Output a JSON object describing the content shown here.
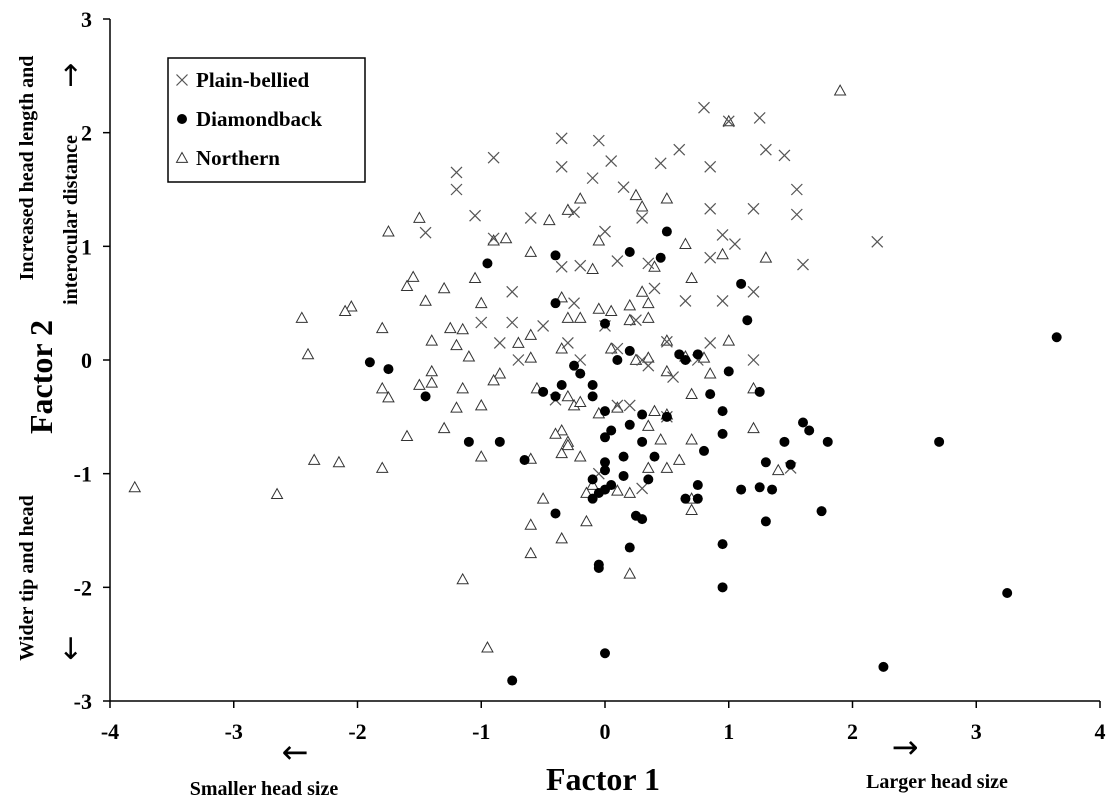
{
  "chart_data": {
    "type": "scatter",
    "title": "",
    "xlabel": "Factor 1",
    "ylabel": "Factor 2",
    "xlim": [
      -4,
      4
    ],
    "ylim": [
      -3,
      3
    ],
    "xticks": [
      "-4",
      "-3",
      "-2",
      "-1",
      "0",
      "1",
      "2",
      "3",
      "4"
    ],
    "yticks": [
      "-3",
      "-2",
      "-1",
      "0",
      "1",
      "2",
      "3"
    ],
    "grid": false,
    "legend_position": "top-left",
    "annotations": {
      "x_left": "Smaller head size",
      "x_right": "Larger head size",
      "y_top_line1": "Increased head length and",
      "y_top_line2": "interocular distance",
      "y_bottom": "Wider tip and head",
      "arrow_left": "←",
      "arrow_right": "→",
      "arrow_up": "→",
      "arrow_down": "←"
    },
    "series": [
      {
        "name": "Plain-bellied",
        "marker": "x",
        "points": [
          [
            0.8,
            2.22
          ],
          [
            1.0,
            2.1
          ],
          [
            1.25,
            2.13
          ],
          [
            1.3,
            1.85
          ],
          [
            1.45,
            1.8
          ],
          [
            -0.35,
            1.95
          ],
          [
            -0.05,
            1.93
          ],
          [
            -0.9,
            1.78
          ],
          [
            0.6,
            1.85
          ],
          [
            0.05,
            1.75
          ],
          [
            0.45,
            1.73
          ],
          [
            -0.35,
            1.7
          ],
          [
            0.85,
            1.7
          ],
          [
            -1.2,
            1.65
          ],
          [
            -0.1,
            1.6
          ],
          [
            1.55,
            1.5
          ],
          [
            -1.2,
            1.5
          ],
          [
            0.15,
            1.52
          ],
          [
            1.2,
            1.33
          ],
          [
            0.85,
            1.33
          ],
          [
            1.55,
            1.28
          ],
          [
            -1.05,
            1.27
          ],
          [
            -0.25,
            1.3
          ],
          [
            0.3,
            1.25
          ],
          [
            -0.6,
            1.25
          ],
          [
            -1.45,
            1.12
          ],
          [
            0.0,
            1.13
          ],
          [
            0.95,
            1.1
          ],
          [
            -0.9,
            1.07
          ],
          [
            0.1,
            0.87
          ],
          [
            0.35,
            0.85
          ],
          [
            1.05,
            1.02
          ],
          [
            2.2,
            1.04
          ],
          [
            -0.35,
            0.82
          ],
          [
            -0.2,
            0.83
          ],
          [
            1.6,
            0.84
          ],
          [
            0.4,
            0.63
          ],
          [
            -0.75,
            0.6
          ],
          [
            1.2,
            0.6
          ],
          [
            0.85,
            0.9
          ],
          [
            0.65,
            0.52
          ],
          [
            0.95,
            0.52
          ],
          [
            -0.25,
            0.5
          ],
          [
            0.25,
            0.35
          ],
          [
            -1.0,
            0.33
          ],
          [
            -0.5,
            0.3
          ],
          [
            0.0,
            0.3
          ],
          [
            0.5,
            0.16
          ],
          [
            -0.85,
            0.15
          ],
          [
            -0.3,
            0.15
          ],
          [
            0.85,
            0.15
          ],
          [
            0.1,
            0.1
          ],
          [
            0.3,
            0.0
          ],
          [
            -0.7,
            0.0
          ],
          [
            0.75,
            0.0
          ],
          [
            0.3,
            -1.13
          ],
          [
            1.5,
            -0.95
          ],
          [
            -0.05,
            -1.0
          ],
          [
            0.2,
            -0.4
          ],
          [
            0.5,
            -0.5
          ],
          [
            -0.2,
            0.0
          ],
          [
            0.35,
            -0.05
          ],
          [
            -0.75,
            0.33
          ],
          [
            0.1,
            -0.4
          ],
          [
            -0.4,
            -0.35
          ],
          [
            0.55,
            -0.15
          ],
          [
            1.2,
            0.0
          ]
        ]
      },
      {
        "name": "Diamondback",
        "marker": "filled-circle",
        "points": [
          [
            3.65,
            0.2
          ],
          [
            0.5,
            1.13
          ],
          [
            0.2,
            0.95
          ],
          [
            0.45,
            0.9
          ],
          [
            -0.4,
            0.92
          ],
          [
            -0.95,
            0.85
          ],
          [
            1.1,
            0.67
          ],
          [
            -0.4,
            0.5
          ],
          [
            1.15,
            0.35
          ],
          [
            0.0,
            0.32
          ],
          [
            -1.9,
            -0.02
          ],
          [
            -1.75,
            -0.08
          ],
          [
            0.6,
            0.05
          ],
          [
            0.75,
            0.05
          ],
          [
            0.1,
            0.0
          ],
          [
            0.65,
            0.0
          ],
          [
            -0.25,
            -0.05
          ],
          [
            1.0,
            -0.1
          ],
          [
            -0.2,
            -0.12
          ],
          [
            0.2,
            0.08
          ],
          [
            -0.35,
            -0.22
          ],
          [
            -0.5,
            -0.28
          ],
          [
            -0.1,
            -0.22
          ],
          [
            -0.4,
            -0.32
          ],
          [
            -1.45,
            -0.32
          ],
          [
            -0.1,
            -0.32
          ],
          [
            0.85,
            -0.3
          ],
          [
            1.25,
            -0.28
          ],
          [
            0.0,
            -0.45
          ],
          [
            0.3,
            -0.48
          ],
          [
            0.5,
            -0.5
          ],
          [
            0.95,
            -0.45
          ],
          [
            0.2,
            -0.57
          ],
          [
            0.05,
            -0.62
          ],
          [
            0.0,
            -0.68
          ],
          [
            0.3,
            -0.72
          ],
          [
            -0.85,
            -0.72
          ],
          [
            -1.1,
            -0.72
          ],
          [
            0.95,
            -0.65
          ],
          [
            1.6,
            -0.55
          ],
          [
            1.65,
            -0.62
          ],
          [
            1.45,
            -0.72
          ],
          [
            1.8,
            -0.72
          ],
          [
            2.7,
            -0.72
          ],
          [
            0.15,
            -0.85
          ],
          [
            0.4,
            -0.85
          ],
          [
            0.8,
            -0.8
          ],
          [
            -0.65,
            -0.88
          ],
          [
            0.0,
            -0.9
          ],
          [
            1.3,
            -0.9
          ],
          [
            1.5,
            -0.92
          ],
          [
            0.0,
            -0.97
          ],
          [
            0.15,
            -1.02
          ],
          [
            -0.1,
            -1.05
          ],
          [
            0.35,
            -1.05
          ],
          [
            0.75,
            -1.1
          ],
          [
            1.25,
            -1.12
          ],
          [
            1.1,
            -1.14
          ],
          [
            1.35,
            -1.14
          ],
          [
            0.0,
            -1.14
          ],
          [
            0.05,
            -1.1
          ],
          [
            -0.05,
            -1.17
          ],
          [
            -0.1,
            -1.22
          ],
          [
            0.65,
            -1.22
          ],
          [
            0.75,
            -1.22
          ],
          [
            -0.4,
            -1.35
          ],
          [
            0.25,
            -1.37
          ],
          [
            0.3,
            -1.4
          ],
          [
            1.3,
            -1.42
          ],
          [
            1.75,
            -1.33
          ],
          [
            0.95,
            -1.62
          ],
          [
            0.2,
            -1.65
          ],
          [
            -0.05,
            -1.8
          ],
          [
            -0.05,
            -1.83
          ],
          [
            0.95,
            -2.0
          ],
          [
            3.25,
            -2.05
          ],
          [
            0.0,
            -2.58
          ],
          [
            2.25,
            -2.7
          ],
          [
            -0.75,
            -2.82
          ]
        ]
      },
      {
        "name": "Northern",
        "marker": "open-triangle",
        "points": [
          [
            1.9,
            2.37
          ],
          [
            1.0,
            2.1
          ],
          [
            -0.05,
            1.05
          ],
          [
            0.5,
            1.42
          ],
          [
            0.25,
            1.45
          ],
          [
            -0.2,
            1.42
          ],
          [
            -0.3,
            1.32
          ],
          [
            0.3,
            1.35
          ],
          [
            -1.5,
            1.25
          ],
          [
            -0.45,
            1.23
          ],
          [
            -1.75,
            1.13
          ],
          [
            -0.9,
            1.05
          ],
          [
            -0.8,
            1.07
          ],
          [
            -0.6,
            0.95
          ],
          [
            0.65,
            1.02
          ],
          [
            0.95,
            0.93
          ],
          [
            1.3,
            0.9
          ],
          [
            -0.1,
            0.8
          ],
          [
            0.4,
            0.82
          ],
          [
            -1.55,
            0.73
          ],
          [
            -1.05,
            0.72
          ],
          [
            0.7,
            0.72
          ],
          [
            -1.6,
            0.65
          ],
          [
            -1.3,
            0.63
          ],
          [
            0.3,
            0.6
          ],
          [
            -2.05,
            0.47
          ],
          [
            -1.45,
            0.52
          ],
          [
            -0.35,
            0.55
          ],
          [
            -1.0,
            0.5
          ],
          [
            0.2,
            0.48
          ],
          [
            0.35,
            0.5
          ],
          [
            -0.05,
            0.45
          ],
          [
            0.05,
            0.43
          ],
          [
            -2.1,
            0.43
          ],
          [
            -2.45,
            0.37
          ],
          [
            -0.3,
            0.37
          ],
          [
            -0.2,
            0.37
          ],
          [
            -1.8,
            0.28
          ],
          [
            -1.25,
            0.28
          ],
          [
            -1.15,
            0.27
          ],
          [
            0.2,
            0.35
          ],
          [
            0.35,
            0.37
          ],
          [
            -0.6,
            0.22
          ],
          [
            -0.7,
            0.15
          ],
          [
            0.5,
            0.17
          ],
          [
            -1.4,
            0.17
          ],
          [
            1.0,
            0.17
          ],
          [
            -0.35,
            0.1
          ],
          [
            0.05,
            0.1
          ],
          [
            -1.2,
            0.13
          ],
          [
            -2.4,
            0.05
          ],
          [
            -1.1,
            0.03
          ],
          [
            -0.6,
            0.02
          ],
          [
            0.25,
            0.0
          ],
          [
            0.35,
            0.02
          ],
          [
            0.65,
            0.03
          ],
          [
            0.8,
            0.02
          ],
          [
            -1.4,
            -0.1
          ],
          [
            -0.85,
            -0.12
          ],
          [
            0.5,
            -0.1
          ],
          [
            0.85,
            -0.12
          ],
          [
            -1.4,
            -0.2
          ],
          [
            -0.9,
            -0.18
          ],
          [
            -1.8,
            -0.25
          ],
          [
            -1.5,
            -0.22
          ],
          [
            -1.15,
            -0.25
          ],
          [
            -0.55,
            -0.25
          ],
          [
            1.2,
            -0.25
          ],
          [
            -1.75,
            -0.33
          ],
          [
            0.7,
            -0.3
          ],
          [
            -0.3,
            -0.32
          ],
          [
            -1.2,
            -0.42
          ],
          [
            -0.25,
            -0.4
          ],
          [
            -0.2,
            -0.37
          ],
          [
            0.1,
            -0.42
          ],
          [
            -1.0,
            -0.4
          ],
          [
            0.4,
            -0.45
          ],
          [
            0.5,
            -0.48
          ],
          [
            -0.05,
            -0.47
          ],
          [
            0.35,
            -0.58
          ],
          [
            -0.35,
            -0.62
          ],
          [
            -0.4,
            -0.65
          ],
          [
            1.2,
            -0.6
          ],
          [
            -1.3,
            -0.6
          ],
          [
            -1.6,
            -0.67
          ],
          [
            -0.3,
            -0.72
          ],
          [
            0.45,
            -0.7
          ],
          [
            0.7,
            -0.7
          ],
          [
            -0.35,
            -0.82
          ],
          [
            -0.2,
            -0.85
          ],
          [
            -0.6,
            -0.87
          ],
          [
            -0.3,
            -0.75
          ],
          [
            -1.0,
            -0.85
          ],
          [
            0.6,
            -0.88
          ],
          [
            -2.35,
            -0.88
          ],
          [
            -2.15,
            -0.9
          ],
          [
            -1.8,
            -0.95
          ],
          [
            0.35,
            -0.95
          ],
          [
            0.5,
            -0.95
          ],
          [
            1.4,
            -0.97
          ],
          [
            -3.8,
            -1.12
          ],
          [
            -2.65,
            -1.18
          ],
          [
            -0.1,
            -1.1
          ],
          [
            -0.15,
            -1.17
          ],
          [
            0.1,
            -1.15
          ],
          [
            0.2,
            -1.17
          ],
          [
            0.7,
            -1.22
          ],
          [
            -0.5,
            -1.22
          ],
          [
            0.7,
            -1.32
          ],
          [
            -0.15,
            -1.42
          ],
          [
            -0.6,
            -1.45
          ],
          [
            -0.35,
            -1.57
          ],
          [
            -0.6,
            -1.7
          ],
          [
            0.2,
            -1.88
          ],
          [
            -1.15,
            -1.93
          ],
          [
            -0.95,
            -2.53
          ]
        ]
      }
    ]
  }
}
